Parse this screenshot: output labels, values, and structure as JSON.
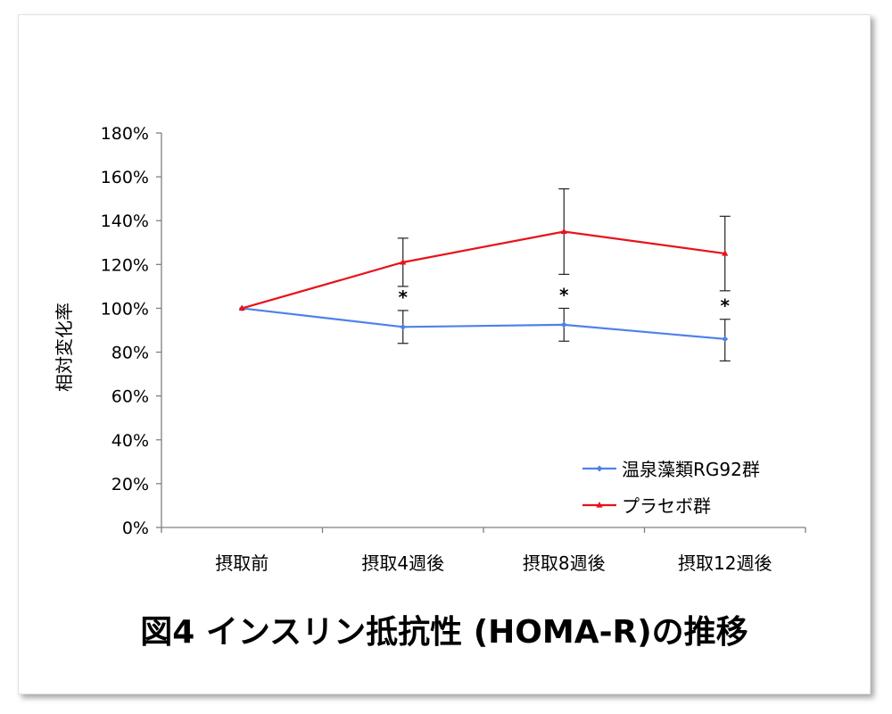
{
  "chart_data": {
    "type": "line",
    "categories": [
      "摂取前",
      "摂取4週後",
      "摂取8週後",
      "摂取12週後"
    ],
    "ylabel": "相対変化率",
    "xlabel": "",
    "ylim": [
      0,
      180
    ],
    "y_ticks": [
      "0%",
      "20%",
      "40%",
      "60%",
      "80%",
      "100%",
      "120%",
      "140%",
      "160%",
      "180%"
    ],
    "y_tick_values": [
      0,
      20,
      40,
      60,
      80,
      100,
      120,
      140,
      160,
      180
    ],
    "grid": false,
    "legend_position": "bottom-right",
    "series": [
      {
        "name": "温泉藻類RG92群",
        "color": "#4f81e8",
        "marker": "diamond",
        "values": [
          100,
          91.5,
          92.5,
          86
        ],
        "error_low": [
          100,
          84,
          85,
          76
        ],
        "error_high": [
          100,
          99,
          100,
          95
        ]
      },
      {
        "name": "プラセボ群",
        "color": "#e8121b",
        "marker": "triangle",
        "values": [
          100,
          121,
          135,
          125
        ],
        "error_low": [
          100,
          110,
          115.5,
          108
        ],
        "error_high": [
          100,
          132,
          154.5,
          142
        ]
      }
    ],
    "annotations": [
      {
        "category_index": 1,
        "text": "*"
      },
      {
        "category_index": 2,
        "text": "*"
      },
      {
        "category_index": 3,
        "text": "*"
      }
    ]
  },
  "caption": "図4 インスリン抵抗性 (HOMA-R)の推移"
}
